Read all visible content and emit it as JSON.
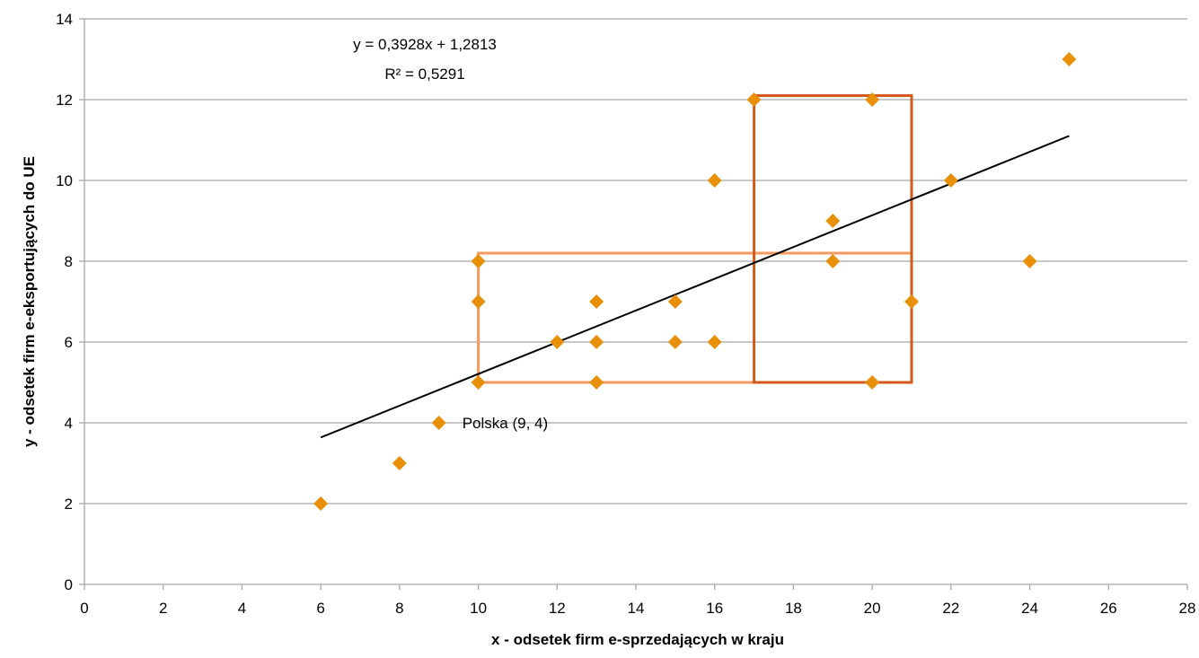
{
  "chart_data": {
    "type": "scatter",
    "xlabel": "x - odsetek firm e-sprzedających w kraju",
    "ylabel": "y - odsetek firm e-eksportujących do UE",
    "xlim": [
      0,
      28
    ],
    "ylim": [
      0,
      14
    ],
    "x_ticks": [
      0,
      2,
      4,
      6,
      8,
      10,
      12,
      14,
      16,
      18,
      20,
      22,
      24,
      26,
      28
    ],
    "y_ticks": [
      0,
      2,
      4,
      6,
      8,
      10,
      12,
      14
    ],
    "grid": "horizontal",
    "marker": "diamond",
    "colors": {
      "points": "#E8900A",
      "trendline": "#000000",
      "grid": "#A6A6A6",
      "box_light": "#F79A60",
      "box_dark": "#D25A1A"
    },
    "points": [
      {
        "x": 6,
        "y": 2
      },
      {
        "x": 8,
        "y": 3
      },
      {
        "x": 9,
        "y": 4
      },
      {
        "x": 10,
        "y": 5
      },
      {
        "x": 10,
        "y": 7
      },
      {
        "x": 10,
        "y": 8
      },
      {
        "x": 12,
        "y": 6
      },
      {
        "x": 13,
        "y": 5
      },
      {
        "x": 13,
        "y": 6
      },
      {
        "x": 13,
        "y": 7
      },
      {
        "x": 15,
        "y": 6
      },
      {
        "x": 15,
        "y": 7
      },
      {
        "x": 16,
        "y": 6
      },
      {
        "x": 16,
        "y": 10
      },
      {
        "x": 17,
        "y": 12
      },
      {
        "x": 19,
        "y": 8
      },
      {
        "x": 19,
        "y": 9
      },
      {
        "x": 20,
        "y": 5
      },
      {
        "x": 20,
        "y": 12
      },
      {
        "x": 21,
        "y": 7
      },
      {
        "x": 22,
        "y": 10
      },
      {
        "x": 24,
        "y": 8
      },
      {
        "x": 25,
        "y": 13
      }
    ],
    "trendline": {
      "slope": 0.3928,
      "intercept": 1.2813,
      "x_range": [
        6,
        25
      ],
      "equation": "y = 0,3928x + 1,2813",
      "r_squared": "R² = 0,5291"
    },
    "point_annotation": {
      "x": 9,
      "y": 4,
      "text": "Polska (9, 4)"
    },
    "highlight_boxes": [
      {
        "x0": 10,
        "x1": 21,
        "y0": 5,
        "y1": 8.2,
        "style": "light"
      },
      {
        "x0": 17,
        "x1": 21,
        "y0": 5,
        "y1": 12.1,
        "style": "dark"
      }
    ]
  }
}
